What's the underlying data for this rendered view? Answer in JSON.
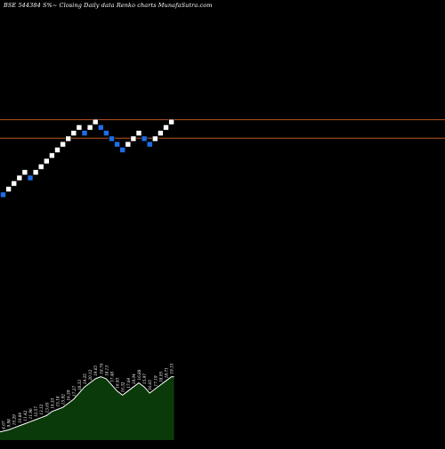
{
  "chart_data": {
    "type": "renko",
    "title": "BSE 544384  S%~  Closing Daily data  Renko  charts MunafaSutra.com",
    "bricks": [
      {
        "close": 1,
        "direction": "down"
      },
      {
        "close": 2,
        "direction": "up"
      },
      {
        "close": 3,
        "direction": "up"
      },
      {
        "close": 4,
        "direction": "up"
      },
      {
        "close": 5,
        "direction": "up"
      },
      {
        "close": 4,
        "direction": "down"
      },
      {
        "close": 5,
        "direction": "up"
      },
      {
        "close": 6,
        "direction": "up"
      },
      {
        "close": 7,
        "direction": "up"
      },
      {
        "close": 8,
        "direction": "up"
      },
      {
        "close": 9,
        "direction": "up"
      },
      {
        "close": 10,
        "direction": "up"
      },
      {
        "close": 11,
        "direction": "up"
      },
      {
        "close": 12,
        "direction": "up"
      },
      {
        "close": 13,
        "direction": "up"
      },
      {
        "close": 12,
        "direction": "down"
      },
      {
        "close": 13,
        "direction": "up"
      },
      {
        "close": 14,
        "direction": "up"
      },
      {
        "close": 13,
        "direction": "down"
      },
      {
        "close": 12,
        "direction": "down"
      },
      {
        "close": 11,
        "direction": "down"
      },
      {
        "close": 10,
        "direction": "down"
      },
      {
        "close": 9,
        "direction": "down"
      },
      {
        "close": 10,
        "direction": "up"
      },
      {
        "close": 11,
        "direction": "up"
      },
      {
        "close": 12,
        "direction": "up"
      },
      {
        "close": 11,
        "direction": "down"
      },
      {
        "close": 10,
        "direction": "down"
      },
      {
        "close": 11,
        "direction": "up"
      },
      {
        "close": 12,
        "direction": "up"
      },
      {
        "close": 13,
        "direction": "up"
      },
      {
        "close": 14,
        "direction": "up"
      }
    ],
    "reference_lines": [
      {
        "level": 14.4,
        "color": "#b8541f"
      },
      {
        "level": 11.1,
        "color": "#b8541f"
      }
    ],
    "price_labels": [
      "4.67",
      "9.98",
      "10.29",
      "10.84",
      "11.42",
      "11.96",
      "12.57",
      "13.12",
      "13.65",
      "14.33",
      "15.18",
      "15.92",
      "16.39",
      "17.27",
      "18.33",
      "19.25",
      "20.12",
      "19.65",
      "18.74",
      "18.13",
      "17.48",
      "16.93",
      "16.32",
      "17.64",
      "18.04",
      "16.88",
      "15.97",
      "16.65",
      "17.19",
      "18.05",
      "18.71",
      "19.15"
    ],
    "volume_profile": [
      4,
      5,
      6,
      7,
      8,
      9,
      10,
      11,
      12,
      14,
      15,
      16,
      18,
      20,
      23,
      26,
      28,
      30,
      31,
      30,
      27,
      24,
      22,
      24,
      26,
      28,
      26,
      23,
      25,
      27,
      29,
      31
    ],
    "colors": {
      "background": "#000000",
      "up_brick": "#ffffff",
      "down_brick": "#1e6ee6",
      "volume_fill": "#0a3a0a",
      "volume_edge": "#ffffff",
      "title_text": "#ffffff",
      "label_text": "#ffffff"
    }
  }
}
